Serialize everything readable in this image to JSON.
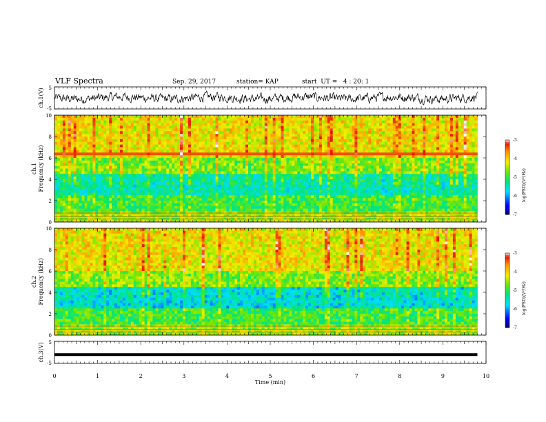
{
  "header": {
    "title": "VLF Spectra",
    "date": "Sep. 29, 2017",
    "station": "station= KAP",
    "start": "start  UT =   4 : 20: 1"
  },
  "chart_data": [
    {
      "type": "line",
      "panel": "ch1",
      "ylabel": "ch.1(V)",
      "ylim": [
        -5,
        5
      ],
      "yticks": [
        "5",
        "-5"
      ],
      "xlim": [
        0,
        10
      ],
      "description_values": "noisy waveform approximately -1 to 1 V over 0-9.8 min"
    },
    {
      "type": "heatmap",
      "panel": "ch1-spectrogram",
      "ylabel": "ch.1\nFrequency  (kHz)",
      "yticks": [
        "0",
        "2",
        "4",
        "6",
        "8",
        "10"
      ],
      "ylim": [
        0,
        10
      ],
      "xlim": [
        0,
        10
      ],
      "colorbar": {
        "label": "log(PSD)(V²/Hz)",
        "ticks": [
          "-3",
          "-4",
          "-5",
          "-6",
          "-7"
        ],
        "range": [
          -7,
          -3
        ]
      }
    },
    {
      "type": "heatmap",
      "panel": "ch2-spectrogram",
      "ylabel": "ch.2\nFrequency  (kHz)",
      "yticks": [
        "0",
        "2",
        "4",
        "6",
        "8",
        "10"
      ],
      "ylim": [
        0,
        10
      ],
      "xlim": [
        0,
        10
      ],
      "colorbar": {
        "label": "log(PSD)(V²/Hz)",
        "ticks": [
          "-3",
          "-4",
          "-5",
          "-6",
          "-7"
        ],
        "range": [
          -7,
          -3
        ]
      }
    },
    {
      "type": "line",
      "panel": "ch3",
      "ylabel": "ch.3(V)",
      "ylim": [
        -5,
        5
      ],
      "yticks": [
        "5",
        "-5"
      ],
      "x": [
        0,
        9.8
      ],
      "y": [
        -1,
        -1
      ]
    }
  ],
  "xaxis": {
    "label": "Time  (min)",
    "ticks": [
      "0",
      "1",
      "2",
      "3",
      "4",
      "5",
      "6",
      "7",
      "8",
      "9",
      "10"
    ]
  }
}
